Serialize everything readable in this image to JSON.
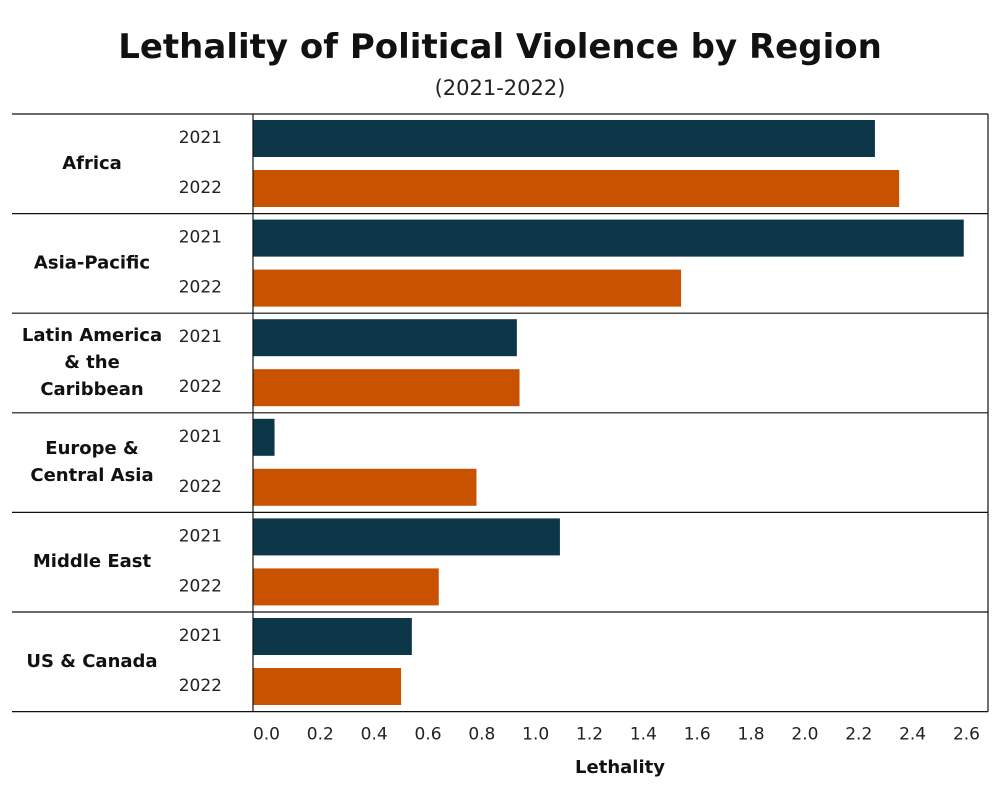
{
  "chart_data": {
    "type": "bar",
    "orientation": "horizontal",
    "title": "Lethality of Political Violence by Region",
    "subtitle": "(2021-2022)",
    "xlabel": "Lethality",
    "xlim": [
      -0.05,
      2.68
    ],
    "xticks": [
      "0.0",
      "0.2",
      "0.4",
      "0.6",
      "0.8",
      "1.0",
      "1.2",
      "1.4",
      "1.6",
      "1.8",
      "2.0",
      "2.2",
      "2.4",
      "2.6"
    ],
    "grid": false,
    "categories": [
      "Africa",
      "Asia-Pacific",
      "Latin America & the Caribbean",
      "Europe & Central Asia",
      "Middle East",
      "US & Canada"
    ],
    "category_label_lines": [
      [
        "Africa"
      ],
      [
        "Asia-Pacific"
      ],
      [
        "Latin America",
        "& the",
        "Caribbean"
      ],
      [
        "Europe &",
        "Central Asia"
      ],
      [
        "Middle East"
      ],
      [
        "US & Canada"
      ]
    ],
    "series": [
      {
        "name": "2021",
        "color": "#0b3748",
        "values": [
          2.26,
          2.59,
          0.93,
          0.03,
          1.09,
          0.54
        ]
      },
      {
        "name": "2022",
        "color": "#c85200",
        "values": [
          2.35,
          1.54,
          0.94,
          0.78,
          0.64,
          0.5
        ]
      }
    ]
  }
}
